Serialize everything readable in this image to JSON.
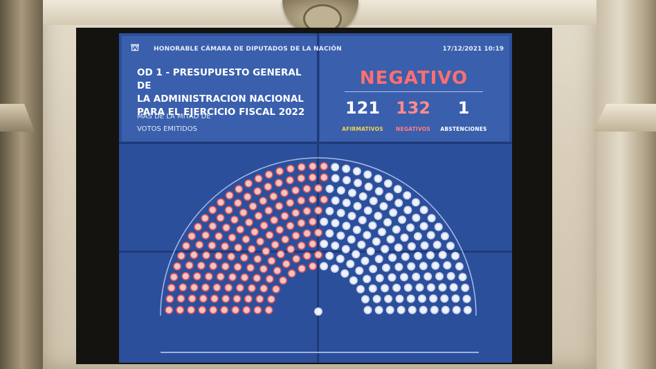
{
  "header": {
    "chamber_name": "HONORABLE CÁMARA DE DIPUTADOS DE LA NACIÓN",
    "datetime": "17/12/2021 10:19"
  },
  "motion": {
    "title_lines": [
      "OD 1 - PRESUPUESTO GENERAL DE",
      "LA ADMINISTRACION NACIONAL",
      "PARA EL EJERCICIO FISCAL 2022"
    ],
    "majority_lines": [
      "MÁS DE LA MITAD DE",
      "VOTOS EMITIDOS"
    ]
  },
  "result": {
    "outcome": "NEGATIVO",
    "afirmativos": {
      "count": "121",
      "label": "AFIRMATIVOS"
    },
    "negativos": {
      "count": "132",
      "label": "NEGATIVOS"
    },
    "abstenciones": {
      "count": "1",
      "label": "ABSTENCIONES"
    }
  },
  "colors": {
    "negative_accent": "#ff6f6f",
    "affirmative_label": "#f6d44a",
    "screen_blue": "#3a5fad"
  },
  "seat_map": {
    "negative_seats": 132,
    "affirmative_seats": 121,
    "abstention_seats": 1
  }
}
